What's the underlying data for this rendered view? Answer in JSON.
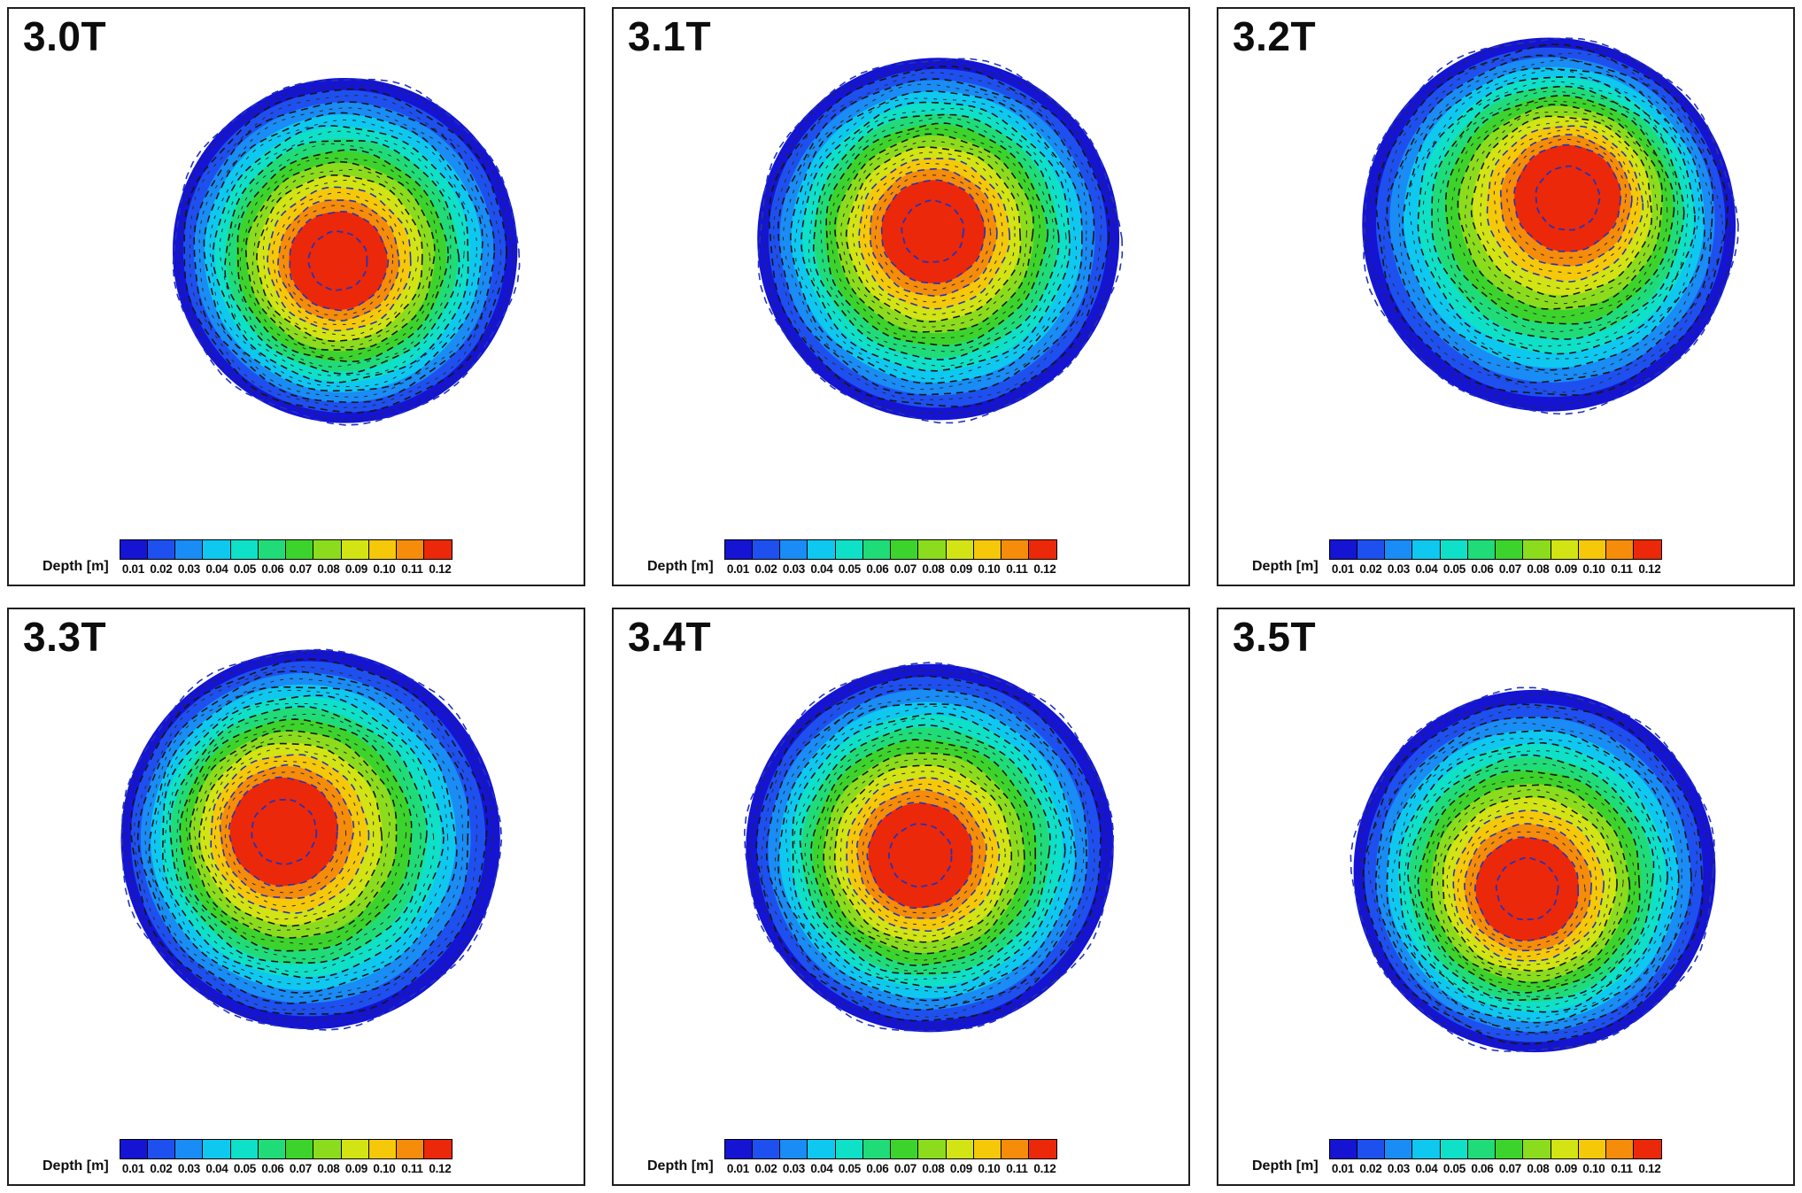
{
  "figure": {
    "rows": 2,
    "cols": 3,
    "background": "#ffffff",
    "panel_border_color": "#1f1f1f"
  },
  "chart_data": {
    "type": "heatmap",
    "subtype": "filled-contour",
    "description_of_marks": "circular filled depth contours with dashed contour lines, jet colormap blue(low) to red(high)",
    "panels": [
      {
        "label": "3.0T",
        "cx": 0.585,
        "cy": 0.42,
        "r": 0.3,
        "peak_dx": -0.04,
        "peak_dy": 0.06
      },
      {
        "label": "3.1T",
        "cx": 0.565,
        "cy": 0.4,
        "r": 0.315,
        "peak_dx": -0.03,
        "peak_dy": -0.04
      },
      {
        "label": "3.2T",
        "cx": 0.575,
        "cy": 0.375,
        "r": 0.325,
        "peak_dx": 0.1,
        "peak_dy": -0.14
      },
      {
        "label": "3.3T",
        "cx": 0.525,
        "cy": 0.4,
        "r": 0.33,
        "peak_dx": -0.14,
        "peak_dy": -0.04
      },
      {
        "label": "3.4T",
        "cx": 0.55,
        "cy": 0.415,
        "r": 0.32,
        "peak_dx": -0.05,
        "peak_dy": 0.04
      },
      {
        "label": "3.5T",
        "cx": 0.55,
        "cy": 0.455,
        "r": 0.315,
        "peak_dx": -0.04,
        "peak_dy": 0.1
      }
    ],
    "colorbar": {
      "label": "Depth [m]",
      "ticks": [
        "0.01",
        "0.02",
        "0.03",
        "0.04",
        "0.05",
        "0.06",
        "0.07",
        "0.08",
        "0.09",
        "0.10",
        "0.11",
        "0.12"
      ],
      "values": [
        0.01,
        0.02,
        0.03,
        0.04,
        0.05,
        0.06,
        0.07,
        0.08,
        0.09,
        0.1,
        0.11,
        0.12
      ],
      "colors": [
        "#1414d2",
        "#1e50f0",
        "#198cf5",
        "#0ec8f0",
        "#0fe0c8",
        "#20dc78",
        "#3cd42c",
        "#8cdc1e",
        "#d2e414",
        "#f5c80a",
        "#f58c0a",
        "#eb280a"
      ]
    },
    "contour_lines": {
      "major_color": "#161616",
      "navy_color": "#2233bb"
    }
  }
}
